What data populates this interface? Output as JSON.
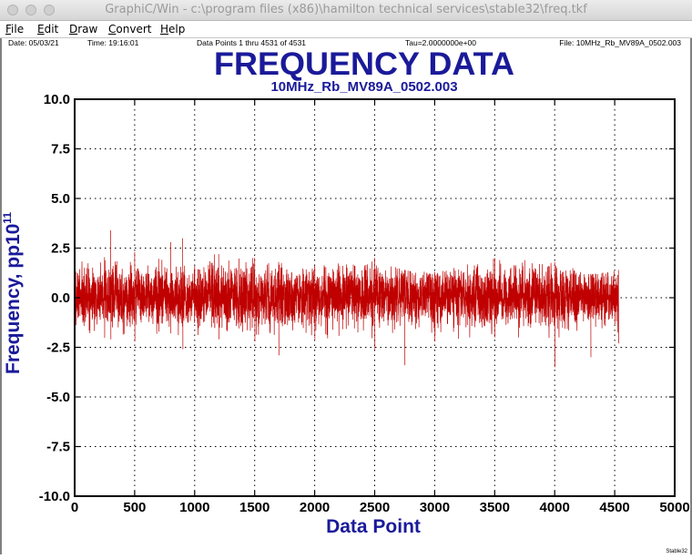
{
  "window": {
    "title": "GraphiC/Win - c:\\program files (x86)\\hamilton technical services\\stable32\\freq.tkf"
  },
  "menu": [
    {
      "label": "File"
    },
    {
      "label": "Edit"
    },
    {
      "label": "Draw"
    },
    {
      "label": "Convert"
    },
    {
      "label": "Help"
    }
  ],
  "header": {
    "date": "Date: 05/03/21",
    "time": "Time: 19:16:01",
    "points": "Data Points 1 thru 4531 of 4531",
    "tau": "Tau=2.0000000e+00",
    "file": "File: 10MHz_Rb_MV89A_0502.003"
  },
  "footer": {
    "tag": "Stable32"
  },
  "colors": {
    "title": "#1a1a9a",
    "series": "#c00000",
    "axis": "#000000"
  },
  "chart_data": {
    "type": "line",
    "title": "FREQUENCY DATA",
    "subtitle": "10MHz_Rb_MV89A_0502.003",
    "xlabel": "Data Point",
    "ylabel_base": "Frequency, pp10",
    "ylabel_exp": "11",
    "xlim": [
      0,
      5000
    ],
    "ylim": [
      -10,
      10
    ],
    "xticks": [
      0,
      500,
      1000,
      1500,
      2000,
      2500,
      3000,
      3500,
      4000,
      4500,
      5000
    ],
    "yticks": [
      "10.0",
      "7.5",
      "5.0",
      "2.5",
      "0.0",
      "-2.5",
      "-5.0",
      "-7.5",
      "-10.0"
    ],
    "grid": true,
    "series": [
      {
        "n_points": 4531,
        "x_start": 1,
        "x_end": 4531,
        "mean": 0.05,
        "noise_sd": 0.75,
        "envelope": [
          {
            "x": 0,
            "max": 1.5,
            "min": -1.9
          },
          {
            "x": 300,
            "max": 3.4,
            "min": -2.1
          },
          {
            "x": 500,
            "max": 2.3,
            "min": -2.2
          },
          {
            "x": 800,
            "max": 2.8,
            "min": -1.8
          },
          {
            "x": 900,
            "max": 3.0,
            "min": -2.6
          },
          {
            "x": 1200,
            "max": 2.2,
            "min": -2.1
          },
          {
            "x": 1500,
            "max": 2.0,
            "min": -2.2
          },
          {
            "x": 1700,
            "max": 1.8,
            "min": -2.9
          },
          {
            "x": 2000,
            "max": 1.6,
            "min": -2.1
          },
          {
            "x": 2500,
            "max": 2.0,
            "min": -2.6
          },
          {
            "x": 2750,
            "max": 1.4,
            "min": -3.4
          },
          {
            "x": 3000,
            "max": 1.3,
            "min": -2.2
          },
          {
            "x": 3500,
            "max": 2.0,
            "min": -2.0
          },
          {
            "x": 4000,
            "max": 1.8,
            "min": -3.5
          },
          {
            "x": 4300,
            "max": 1.2,
            "min": -3.0
          },
          {
            "x": 4531,
            "max": 1.4,
            "min": -2.3
          }
        ]
      }
    ]
  }
}
